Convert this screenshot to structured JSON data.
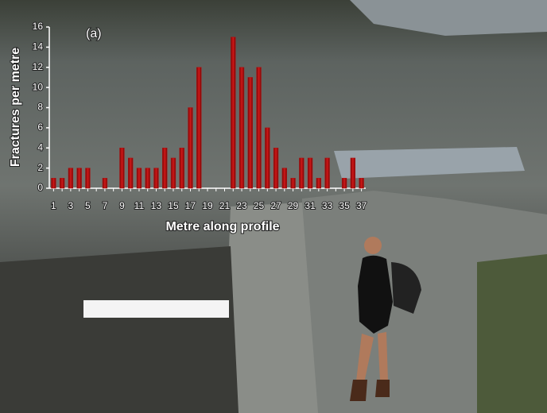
{
  "chart_data": {
    "type": "bar",
    "annotation": "(a)",
    "x_label": "Metre along profile",
    "y_label": "Fractures per metre",
    "categories": [
      "1",
      null,
      "3",
      null,
      "5",
      null,
      "7",
      null,
      "9",
      null,
      "11",
      null,
      "13",
      null,
      "15",
      null,
      "17",
      null,
      "19",
      null,
      "21",
      null,
      "23",
      null,
      "25",
      null,
      "27",
      null,
      "29",
      null,
      "31",
      null,
      "33",
      null,
      "35",
      null,
      "37"
    ],
    "values": [
      1,
      1,
      2,
      2,
      2,
      0,
      1,
      0,
      4,
      3,
      2,
      2,
      2,
      4,
      3,
      4,
      8,
      12,
      0,
      0,
      0,
      15,
      12,
      11,
      12,
      6,
      4,
      2,
      1,
      3,
      3,
      1,
      3,
      0,
      1,
      3,
      1
    ],
    "color": "#b01010",
    "ylim": [
      0,
      16
    ],
    "yticks": [
      0,
      2,
      4,
      6,
      8,
      10,
      12,
      14,
      16
    ]
  }
}
